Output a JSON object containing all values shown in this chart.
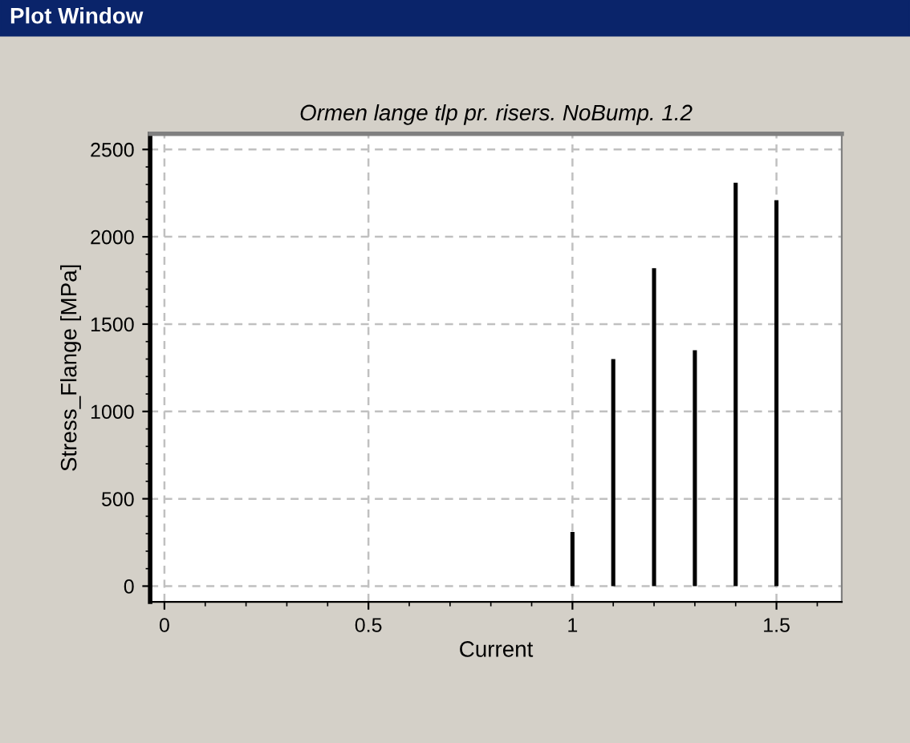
{
  "chart_data": {
    "type": "bar",
    "title": "Ormen lange tlp pr. risers. NoBump. 1.2",
    "xlabel": "Current",
    "ylabel": "Stress_Flange [MPa]",
    "annotations": [
      "Plot Window"
    ],
    "x": [
      1.0,
      1.1,
      1.2,
      1.3,
      1.4,
      1.5
    ],
    "values": [
      310,
      1300,
      1820,
      1350,
      2310,
      2210
    ],
    "color": "#000000",
    "xlim": [
      -0.035,
      1.66
    ],
    "ylim": [
      -90,
      2590
    ],
    "xticks": [
      0,
      0.5,
      1,
      1.5
    ],
    "yticks": [
      0,
      500,
      1000,
      1500,
      2000,
      2500
    ],
    "grid": true
  }
}
